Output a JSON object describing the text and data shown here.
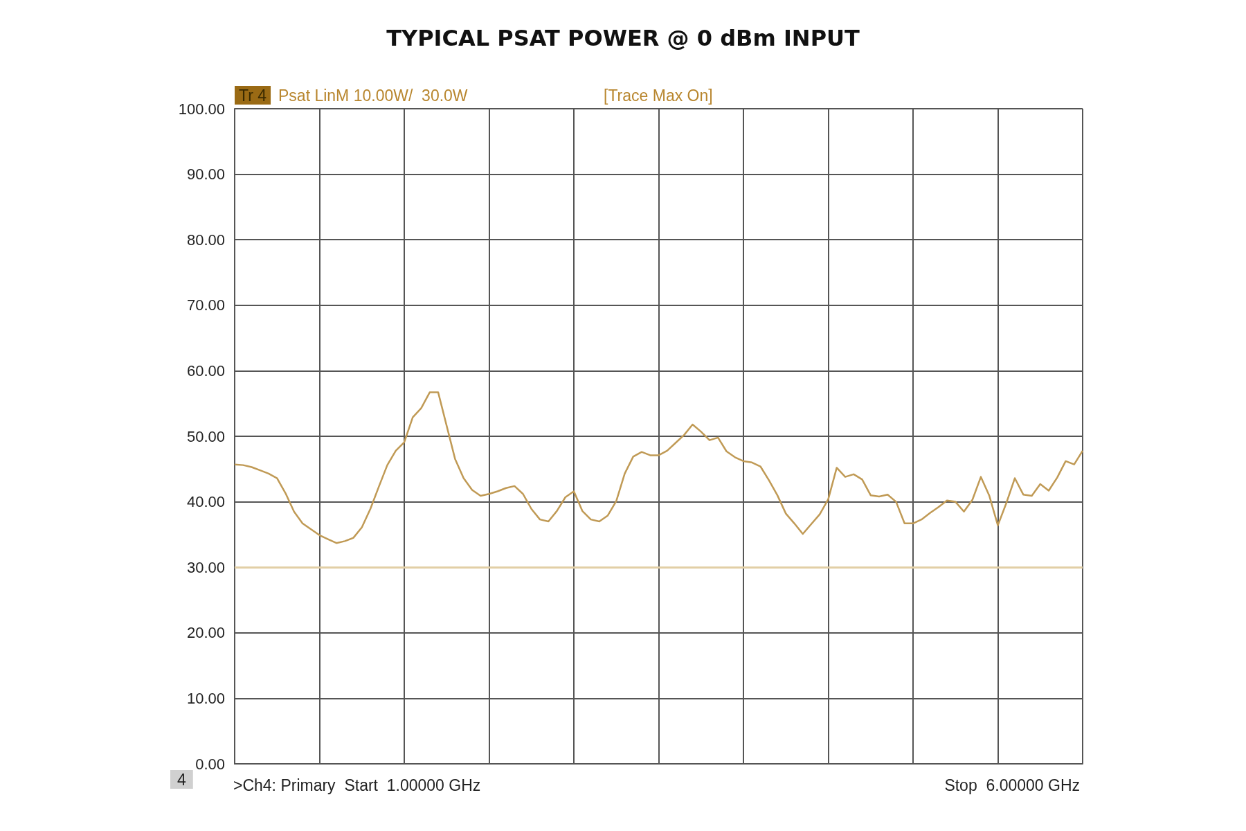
{
  "chart_data": {
    "type": "line",
    "title": "TYPICAL PSAT POWER @ 0 dBm INPUT",
    "annotations": [
      "Tr 4",
      "Psat LinM 10.00W/  30.0W",
      "[Trace Max On]",
      "4",
      ">Ch4: Primary  Start  1.00000 GHz",
      "Stop  6.00000 GHz"
    ],
    "categories": [
      null,
      null,
      null,
      null,
      null,
      null,
      null,
      null,
      null,
      null,
      null,
      null,
      null,
      null,
      null,
      null,
      null,
      null,
      null,
      null,
      null,
      null,
      null,
      null,
      null,
      null,
      null,
      null,
      null,
      null,
      null,
      null,
      null,
      null,
      null,
      null,
      null,
      null,
      null,
      null,
      null,
      null,
      null,
      null,
      null,
      null,
      null,
      null,
      null,
      null,
      null,
      null,
      null,
      null,
      null,
      null,
      null,
      null,
      null,
      null,
      null,
      null,
      null,
      null,
      null,
      null,
      null,
      null,
      null,
      null,
      null,
      null,
      null,
      null,
      null,
      null,
      null,
      null,
      null,
      null,
      null,
      null,
      null,
      null,
      null,
      null,
      null,
      null,
      null,
      null,
      null,
      null,
      null,
      null,
      null,
      null,
      null,
      null,
      null,
      null,
      null
    ],
    "series": [
      {
        "color": "#c09a55",
        "values": [
          45.7,
          45.6,
          45.3,
          44.8,
          44.3,
          43.6,
          41.3,
          38.5,
          36.7,
          35.8,
          34.9,
          34.3,
          33.7,
          34.0,
          34.5,
          36.1,
          38.9,
          42.3,
          45.6,
          47.8,
          49.1,
          52.9,
          54.3,
          56.7,
          56.7,
          51.6,
          46.5,
          43.6,
          41.8,
          40.9,
          41.2,
          41.6,
          42.1,
          42.4,
          41.2,
          38.9,
          37.3,
          37.0,
          38.6,
          40.7,
          41.6,
          38.6,
          37.3,
          37.0,
          37.9,
          40.1,
          44.3,
          46.9,
          47.6,
          47.1,
          47.1,
          47.8,
          49.0,
          50.2,
          51.8,
          50.7,
          49.4,
          49.8,
          47.7,
          46.8,
          46.2,
          46.0,
          45.4,
          43.3,
          41.0,
          38.2,
          36.7,
          35.1,
          36.6,
          38.1,
          40.4,
          45.2,
          43.8,
          44.2,
          43.4,
          41.0,
          40.8,
          41.1,
          40.0,
          36.7,
          36.7,
          37.3,
          38.3,
          39.2,
          40.2,
          40.0,
          38.5,
          40.3,
          43.8,
          40.9,
          36.4,
          39.8,
          43.6,
          41.1,
          40.9,
          42.7,
          41.7,
          43.7,
          46.2,
          45.7,
          47.8
        ]
      }
    ],
    "ylim": [
      0,
      100
    ],
    "yticks": [
      {
        "value": 0,
        "label": "0.00"
      },
      {
        "value": 10,
        "label": "10.00"
      },
      {
        "value": 20,
        "label": "20.00"
      },
      {
        "value": 30,
        "label": "30.00"
      },
      {
        "value": 40,
        "label": "40.00"
      },
      {
        "value": 50,
        "label": "50.00"
      },
      {
        "value": 60,
        "label": "60.00"
      },
      {
        "value": 70,
        "label": "70.00"
      },
      {
        "value": 80,
        "label": "80.00"
      },
      {
        "value": 90,
        "label": "90.00"
      },
      {
        "value": 100,
        "label": "100.00"
      }
    ],
    "ref_lines": [
      {
        "axis": "y",
        "value": 30,
        "color": "#e2cfa6"
      }
    ],
    "grid": true,
    "tick_labels": "y",
    "marker": "none",
    "line_style": "solid"
  }
}
